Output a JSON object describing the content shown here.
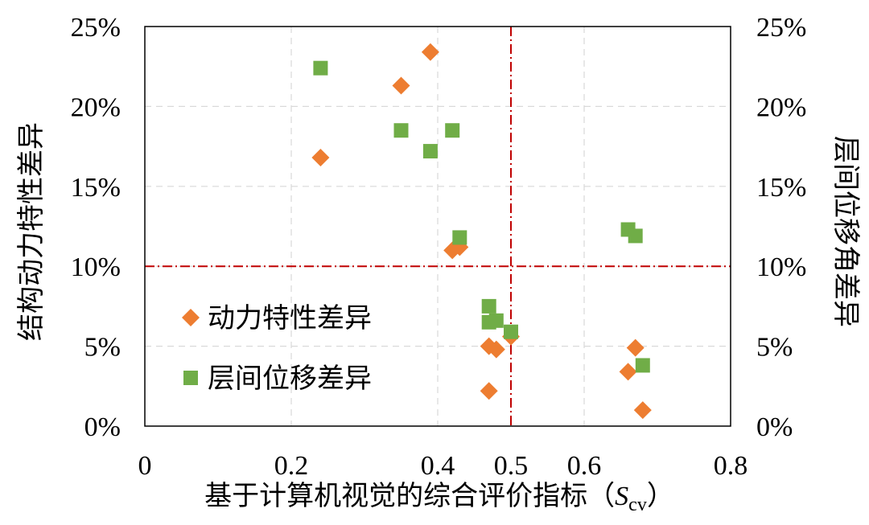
{
  "chart_data": {
    "type": "scatter",
    "xlabel_main": "基于计算机视觉的综合评价指标（",
    "xlabel_symbol": "S",
    "xlabel_subscript": "cv",
    "xlabel_close": "）",
    "ylabel_left": "结构动力特性差异",
    "ylabel_right": "层间位移角差异",
    "xlim": [
      0,
      0.8
    ],
    "ylim": [
      0,
      25
    ],
    "x_ticks": [
      {
        "value": 0,
        "label": "0"
      },
      {
        "value": 0.2,
        "label": "0.2"
      },
      {
        "value": 0.4,
        "label": "0.4"
      },
      {
        "value": 0.5,
        "label": "0.5"
      },
      {
        "value": 0.6,
        "label": "0.6"
      },
      {
        "value": 0.8,
        "label": "0.8"
      }
    ],
    "y_ticks_left": [
      {
        "value": 0,
        "label": "0%"
      },
      {
        "value": 5,
        "label": "5%"
      },
      {
        "value": 10,
        "label": "10%"
      },
      {
        "value": 15,
        "label": "15%"
      },
      {
        "value": 20,
        "label": "20%"
      },
      {
        "value": 25,
        "label": "25%"
      }
    ],
    "y_ticks_right": [
      {
        "value": 0,
        "label": "0%"
      },
      {
        "value": 5,
        "label": "5%"
      },
      {
        "value": 10,
        "label": "10%"
      },
      {
        "value": 15,
        "label": "15%"
      },
      {
        "value": 20,
        "label": "20%"
      },
      {
        "value": 25,
        "label": "25%"
      }
    ],
    "grid": true,
    "reference_lines": {
      "x": 0.5,
      "y": 10,
      "color": "#C00000"
    },
    "legend_position": "bottom-left",
    "series": [
      {
        "name": "动力特性差异",
        "marker": "diamond",
        "color": "#ED7D31",
        "points": [
          {
            "x": 0.24,
            "y": 16.8
          },
          {
            "x": 0.35,
            "y": 21.3
          },
          {
            "x": 0.39,
            "y": 23.4
          },
          {
            "x": 0.42,
            "y": 11.0
          },
          {
            "x": 0.43,
            "y": 11.2
          },
          {
            "x": 0.47,
            "y": 5.0
          },
          {
            "x": 0.48,
            "y": 4.8
          },
          {
            "x": 0.47,
            "y": 2.2
          },
          {
            "x": 0.5,
            "y": 5.6
          },
          {
            "x": 0.66,
            "y": 3.4
          },
          {
            "x": 0.67,
            "y": 4.9
          },
          {
            "x": 0.68,
            "y": 1.0
          }
        ]
      },
      {
        "name": "层间位移差异",
        "marker": "square",
        "color": "#70AD47",
        "points": [
          {
            "x": 0.24,
            "y": 22.4
          },
          {
            "x": 0.35,
            "y": 18.5
          },
          {
            "x": 0.39,
            "y": 17.2
          },
          {
            "x": 0.42,
            "y": 18.5
          },
          {
            "x": 0.43,
            "y": 11.8
          },
          {
            "x": 0.47,
            "y": 7.5
          },
          {
            "x": 0.47,
            "y": 6.5
          },
          {
            "x": 0.48,
            "y": 6.6
          },
          {
            "x": 0.5,
            "y": 5.9
          },
          {
            "x": 0.66,
            "y": 12.3
          },
          {
            "x": 0.67,
            "y": 11.9
          },
          {
            "x": 0.68,
            "y": 3.8
          }
        ]
      }
    ]
  }
}
